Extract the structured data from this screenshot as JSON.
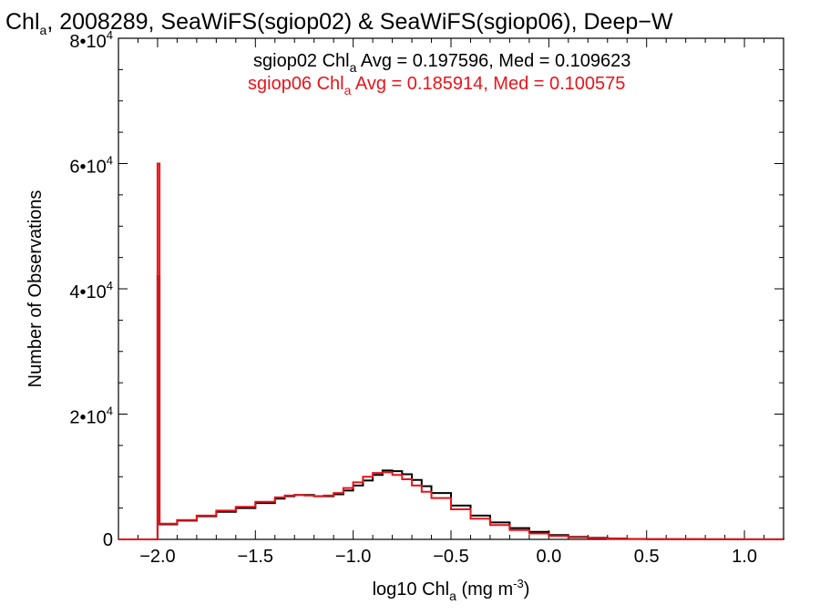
{
  "chart_data": {
    "type": "line",
    "subtype": "step-histogram",
    "title": {
      "prefix": "Chl",
      "prefix_subscript": "a",
      "rest": ", 2008289, SeaWiFS(sgiop02) & SeaWiFS(sgiop06), Deep−W"
    },
    "xlabel": {
      "prefix": "log10 Chl",
      "subscript": "a",
      "units_prefix": " (mg m",
      "units_superscript": "-3",
      "units_suffix": ")"
    },
    "ylabel": "Number of Observations",
    "xlim": [
      -2.2,
      1.2
    ],
    "ylim": [
      0,
      80000
    ],
    "xticks": [
      {
        "value": -2.0,
        "label": "−2.0"
      },
      {
        "value": -1.5,
        "label": "−1.5"
      },
      {
        "value": -1.0,
        "label": "−1.0"
      },
      {
        "value": -0.5,
        "label": "−0.5"
      },
      {
        "value": 0.0,
        "label": "0.0"
      },
      {
        "value": 0.5,
        "label": "0.5"
      },
      {
        "value": 1.0,
        "label": "1.0"
      }
    ],
    "yticks": [
      {
        "value": 0,
        "label": "0",
        "exp": ""
      },
      {
        "value": 20000,
        "label": "2•10",
        "exp": "4"
      },
      {
        "value": 40000,
        "label": "4•10",
        "exp": "4"
      },
      {
        "value": 60000,
        "label": "6•10",
        "exp": "4"
      },
      {
        "value": 80000,
        "label": "8•10",
        "exp": "4"
      }
    ],
    "legend_position": "top-right",
    "series": [
      {
        "name": "sgiop02",
        "color": "#000000",
        "legend": {
          "name": "sgiop02 Chl",
          "subscript": "a",
          "stats": " Avg = 0.197596, Med = 0.109623"
        },
        "x": [
          -2.2,
          -2.01,
          -2.0,
          -1.99,
          -1.9,
          -1.8,
          -1.7,
          -1.6,
          -1.5,
          -1.4,
          -1.35,
          -1.3,
          -1.25,
          -1.2,
          -1.15,
          -1.1,
          -1.05,
          -1.0,
          -0.95,
          -0.9,
          -0.85,
          -0.8,
          -0.75,
          -0.7,
          -0.65,
          -0.6,
          -0.5,
          -0.4,
          -0.3,
          -0.2,
          -0.1,
          0.0,
          0.1,
          0.2,
          0.3,
          0.4,
          0.5,
          0.6,
          0.8,
          1.0,
          1.2
        ],
        "y": [
          0,
          0,
          42000,
          2400,
          3000,
          3700,
          4400,
          5000,
          5800,
          6500,
          6900,
          7100,
          7100,
          6900,
          6900,
          7200,
          7800,
          8600,
          9400,
          10300,
          11000,
          10900,
          10400,
          9500,
          8500,
          7400,
          5400,
          3800,
          2700,
          1800,
          1200,
          700,
          400,
          250,
          150,
          80,
          50,
          30,
          20,
          10,
          0
        ]
      },
      {
        "name": "sgiop06",
        "color": "#e8141b",
        "legend": {
          "name": "sgiop06 Chl",
          "subscript": "a",
          "stats": " Avg = 0.185914, Med = 0.100575"
        },
        "x": [
          -2.2,
          -2.01,
          -2.0,
          -1.99,
          -1.9,
          -1.8,
          -1.7,
          -1.6,
          -1.5,
          -1.4,
          -1.35,
          -1.3,
          -1.25,
          -1.2,
          -1.15,
          -1.1,
          -1.05,
          -1.0,
          -0.95,
          -0.9,
          -0.85,
          -0.8,
          -0.75,
          -0.7,
          -0.65,
          -0.6,
          -0.5,
          -0.4,
          -0.3,
          -0.2,
          -0.1,
          0.0,
          0.1,
          0.2,
          0.3,
          0.4,
          0.5,
          0.6,
          0.8,
          1.0,
          1.2
        ],
        "y": [
          0,
          0,
          60000,
          2500,
          3100,
          3800,
          4600,
          5200,
          6000,
          6700,
          7000,
          7100,
          7000,
          6900,
          7000,
          7400,
          8200,
          9100,
          10000,
          10600,
          10700,
          10300,
          9600,
          8600,
          7600,
          6600,
          4800,
          3300,
          2300,
          1500,
          950,
          550,
          320,
          200,
          120,
          60,
          40,
          25,
          15,
          5,
          0
        ]
      }
    ]
  }
}
